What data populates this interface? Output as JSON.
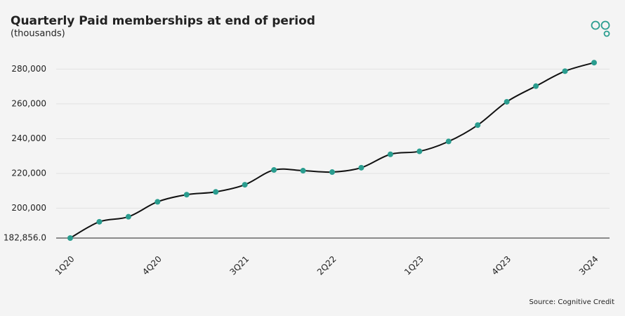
{
  "chart_data": {
    "type": "line",
    "title": "Quarterly Paid memberships at end of period",
    "subtitle": "(thousands)",
    "source": "Source: Cognitive Credit",
    "categories": [
      "1Q20",
      null,
      null,
      "4Q20",
      null,
      null,
      "3Q21",
      null,
      null,
      "2Q22",
      null,
      null,
      "1Q23",
      null,
      null,
      "4Q23",
      null,
      null,
      "3Q24"
    ],
    "values": [
      182856,
      192200,
      195100,
      203700,
      207800,
      209400,
      213500,
      222000,
      221600,
      220800,
      223300,
      231000,
      232700,
      238400,
      247800,
      261200,
      270200,
      278800,
      283700
    ],
    "line_color": "#111111",
    "marker_color": "#2a9d8f",
    "ylim": [
      182856,
      285000
    ],
    "yticks": [
      {
        "value": 182856,
        "label": "182,856.0"
      },
      {
        "value": 200000,
        "label": "200,000"
      },
      {
        "value": 220000,
        "label": "220,000"
      },
      {
        "value": 240000,
        "label": "240,000"
      },
      {
        "value": 260000,
        "label": "260,000"
      },
      {
        "value": 280000,
        "label": "280,000"
      }
    ],
    "grid": true
  }
}
